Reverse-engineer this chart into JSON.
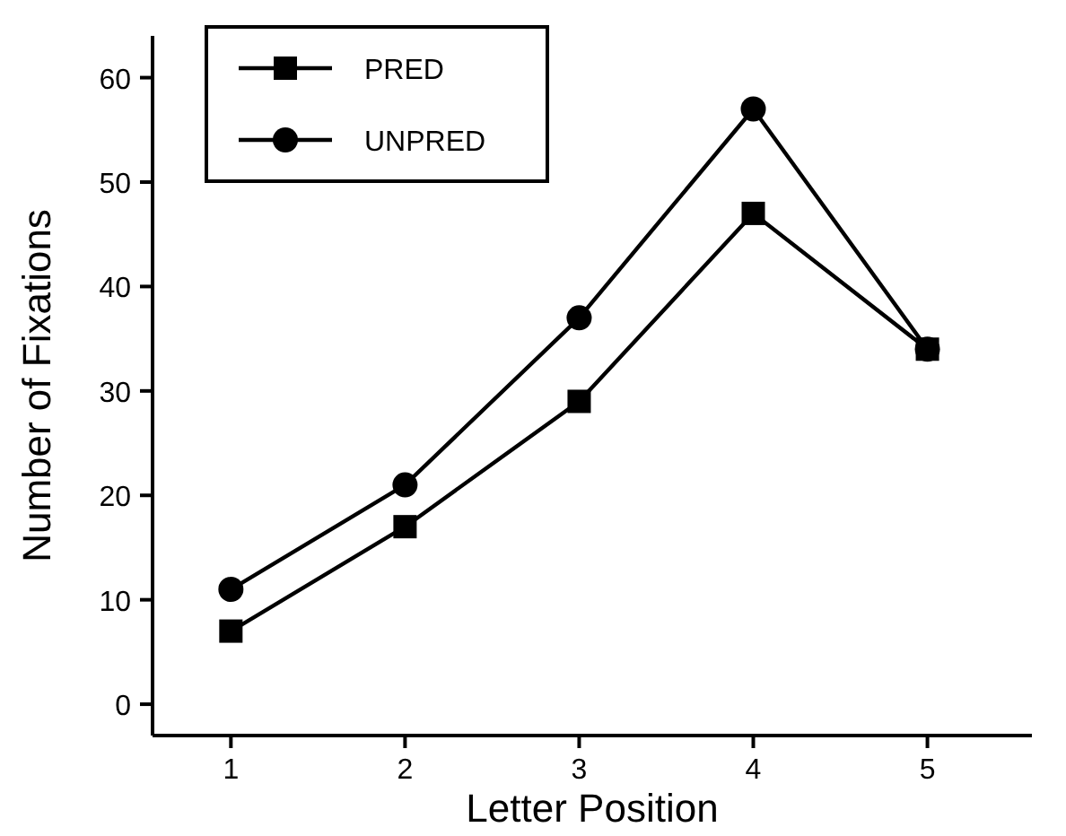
{
  "chart_data": {
    "type": "line",
    "xlabel": "Letter Position",
    "ylabel": "Number of Fixations",
    "x": [
      1,
      2,
      3,
      4,
      5
    ],
    "xlim": [
      0.55,
      5.6
    ],
    "xticks": [
      1,
      2,
      3,
      4,
      5
    ],
    "ylim": [
      -3,
      64
    ],
    "yticks": [
      0,
      10,
      20,
      30,
      40,
      50,
      60
    ],
    "legend": "top left",
    "grid": false,
    "line_style": "solid",
    "series": [
      {
        "name": "PRED",
        "color": "#000000",
        "marker": "square",
        "values": [
          7,
          17,
          29,
          47,
          34
        ]
      },
      {
        "name": "UNPRED",
        "color": "#000000",
        "marker": "circle",
        "values": [
          11,
          21,
          37,
          57,
          34
        ]
      }
    ]
  }
}
